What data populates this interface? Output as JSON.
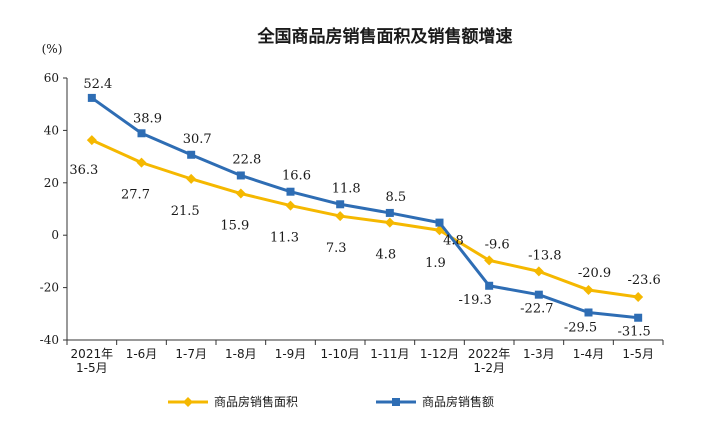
{
  "chart_data": {
    "type": "line",
    "title": "全国商品房销售面积及销售额增速",
    "y_unit": "(%)",
    "ylim": [
      -40,
      60
    ],
    "yticks": [
      60,
      40,
      20,
      0,
      -20,
      -40
    ],
    "categories": [
      [
        "2021年",
        "1-5月"
      ],
      [
        "1-6月"
      ],
      [
        "1-7月"
      ],
      [
        "1-8月"
      ],
      [
        "1-9月"
      ],
      [
        "1-10月"
      ],
      [
        "1-11月"
      ],
      [
        "1-12月"
      ],
      [
        "2022年",
        "1-2月"
      ],
      [
        "1-3月"
      ],
      [
        "1-4月"
      ],
      [
        "1-5月"
      ]
    ],
    "series": [
      {
        "name": "商品房销售面积",
        "color": "#F5B800",
        "marker": "diamond",
        "values": [
          36.3,
          27.7,
          21.5,
          15.9,
          11.3,
          7.3,
          4.8,
          1.9,
          -9.6,
          -13.8,
          -20.9,
          -23.6
        ],
        "labels": [
          "36.3",
          "27.7",
          "21.5",
          "15.9",
          "11.3",
          "7.3",
          "4.8",
          "1.9",
          "-9.6",
          "-13.8",
          "-20.9",
          "-23.6"
        ]
      },
      {
        "name": "商品房销售额",
        "color": "#2E6DB4",
        "marker": "square",
        "values": [
          52.4,
          38.9,
          30.7,
          22.8,
          16.6,
          11.8,
          8.5,
          4.8,
          -19.3,
          -22.7,
          -29.5,
          -31.5
        ],
        "labels": [
          "52.4",
          "38.9",
          "30.7",
          "22.8",
          "16.6",
          "11.8",
          "8.5",
          "4.8",
          "-19.3",
          "-22.7",
          "-29.5",
          "-31.5"
        ]
      }
    ],
    "legend_position": "bottom"
  }
}
